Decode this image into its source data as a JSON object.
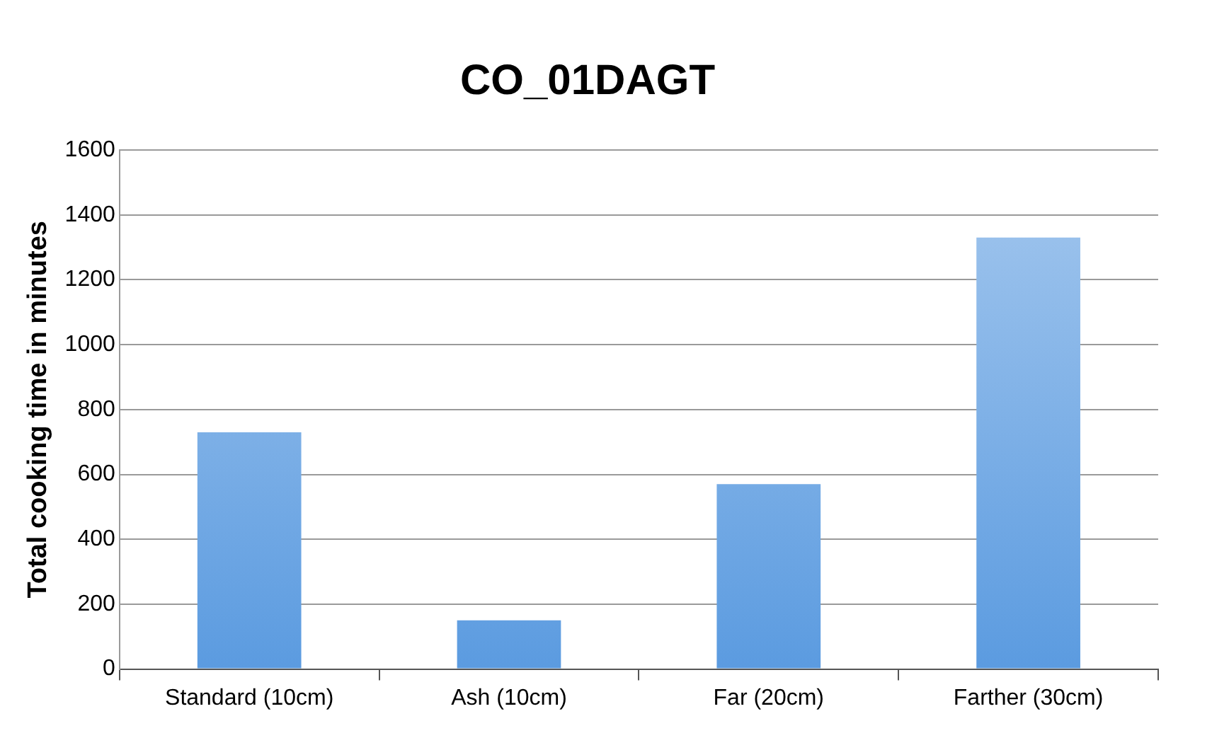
{
  "chart_data": {
    "type": "bar",
    "title": "CO_01DAGT",
    "ylabel": "Total cooking time in minutes",
    "categories": [
      "Standard (10cm)",
      "Ash (10cm)",
      "Far (20cm)",
      "Farther (30cm)"
    ],
    "values": [
      730,
      150,
      570,
      1330
    ],
    "color": "#5b9be0",
    "ylim": [
      0,
      1600
    ],
    "yticks": [
      0,
      200,
      400,
      600,
      800,
      1000,
      1200,
      1400,
      1600
    ],
    "grid": "y"
  }
}
